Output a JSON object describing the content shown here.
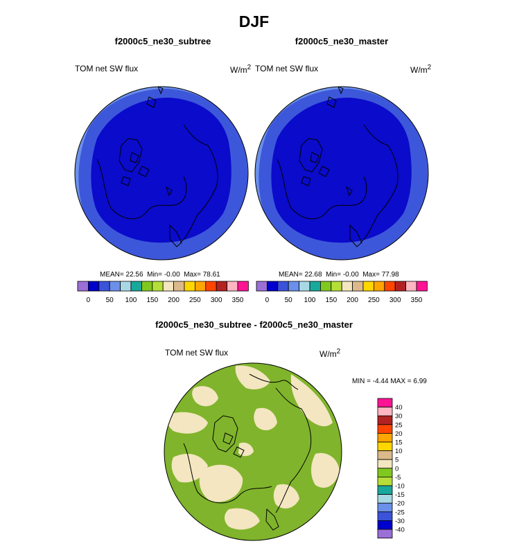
{
  "page": {
    "title": "DJF"
  },
  "chart_data": [
    {
      "type": "contour_map",
      "projection": "polar stereographic (north)",
      "title": "f2000c5_ne30_subtree",
      "left_string": "TOM net SW flux",
      "units": "W/m",
      "units_sup": "2",
      "stats": {
        "mean_label": "MEAN=",
        "mean": "22.56",
        "min_label": "Min=",
        "min": "-0.00",
        "max_label": "Max=",
        "max": "78.61"
      },
      "colorbar": {
        "orientation": "horizontal",
        "levels": [
          0,
          25,
          50,
          75,
          100,
          125,
          150,
          175,
          200,
          225,
          250,
          275,
          300,
          325,
          350
        ],
        "tick_labels": [
          "0",
          "50",
          "100",
          "150",
          "200",
          "250",
          "300",
          "350"
        ],
        "colors": [
          "#9a6fd6",
          "#0000cc",
          "#3b53d9",
          "#6b90ea",
          "#a8d8e3",
          "#1aa89c",
          "#80c820",
          "#b5de38",
          "#f3e6c0",
          "#dcb98a",
          "#ffd700",
          "#ffa500",
          "#ff4500",
          "#b22222",
          "#ffb6c1",
          "#ff1493"
        ]
      },
      "field_colors": {
        "inner": "#0b0bcb",
        "middle": "#3d57da",
        "outer": "#6b90ea"
      }
    },
    {
      "type": "contour_map",
      "projection": "polar stereographic (north)",
      "title": "f2000c5_ne30_master",
      "left_string": "TOM net SW flux",
      "units": "W/m",
      "units_sup": "2",
      "stats": {
        "mean_label": "MEAN=",
        "mean": "22.68",
        "min_label": "Min=",
        "min": "-0.00",
        "max_label": "Max=",
        "max": "77.98"
      },
      "colorbar": {
        "orientation": "horizontal",
        "levels": [
          0,
          25,
          50,
          75,
          100,
          125,
          150,
          175,
          200,
          225,
          250,
          275,
          300,
          325,
          350
        ],
        "tick_labels": [
          "0",
          "50",
          "100",
          "150",
          "200",
          "250",
          "300",
          "350"
        ],
        "colors": [
          "#9a6fd6",
          "#0000cc",
          "#3b53d9",
          "#6b90ea",
          "#a8d8e3",
          "#1aa89c",
          "#80c820",
          "#b5de38",
          "#f3e6c0",
          "#dcb98a",
          "#ffd700",
          "#ffa500",
          "#ff4500",
          "#b22222",
          "#ffb6c1",
          "#ff1493"
        ]
      },
      "field_colors": {
        "inner": "#0b0bcb",
        "middle": "#3d57da",
        "outer": "#6b90ea"
      }
    },
    {
      "type": "contour_map",
      "projection": "polar stereographic (north)",
      "title": "f2000c5_ne30_subtree - f2000c5_ne30_master",
      "left_string": "TOM net SW flux",
      "units": "W/m",
      "units_sup": "2",
      "stats": {
        "min_label": "MIN =",
        "min": "-4.44",
        "max_label": "MAX =",
        "max": "6.99"
      },
      "colorbar": {
        "orientation": "vertical",
        "labels_top_to_bottom": [
          "40",
          "30",
          "25",
          "20",
          "15",
          "10",
          "5",
          "0",
          "-5",
          "-10",
          "-15",
          "-20",
          "-25",
          "-30",
          "-40"
        ],
        "colors_top_to_bottom": [
          "#ff1493",
          "#ffb6c1",
          "#b22222",
          "#ff4500",
          "#ffa500",
          "#ffd700",
          "#dcb98a",
          "#f3e6c0",
          "#80c820",
          "#b5de38",
          "#1aa89c",
          "#a8d8e3",
          "#6b90ea",
          "#3b53d9",
          "#0000cc",
          "#9a6fd6"
        ]
      },
      "field_colors": {
        "base": "#80b42c",
        "patch": "#f3e6c0"
      }
    }
  ]
}
